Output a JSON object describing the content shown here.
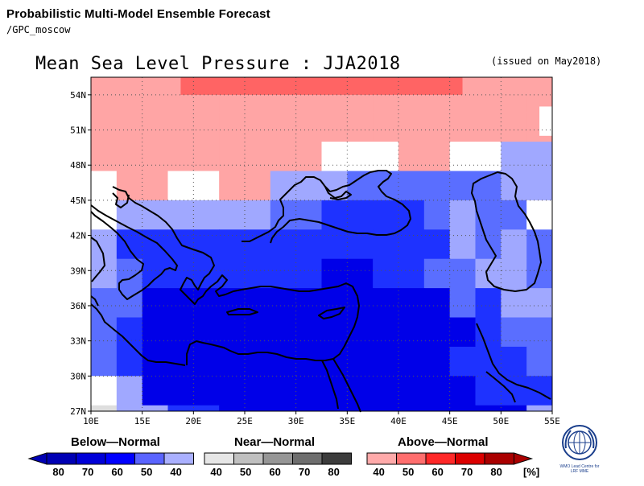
{
  "header": {
    "title": "Probabilistic Multi-Model Ensemble Forecast",
    "subtitle": "/GPC_moscow"
  },
  "map": {
    "title": "Mean Sea Level Pressure : JJA2018",
    "issued": "(issued on May2018)",
    "lon_labels": [
      "10E",
      "15E",
      "20E",
      "25E",
      "30E",
      "35E",
      "40E",
      "45E",
      "50E",
      "55E"
    ],
    "lat_labels": [
      "54N",
      "51N",
      "48N",
      "45N",
      "42N",
      "39N",
      "36N",
      "33N",
      "30N",
      "27N"
    ],
    "lon_range": [
      10,
      55
    ],
    "lat_range": [
      27,
      55.5
    ],
    "grid_cell_deg": 2.5,
    "category_colors": {
      "below_80": "#0000cd",
      "below_70": "#0000e8",
      "below_60": "#1e32ff",
      "below_50": "#5a6eff",
      "below_40": "#a0a8ff",
      "near_40": "#dedede",
      "above_40": "#ffa5a5",
      "above_50": "#ff6464",
      "none": "#ffffff"
    }
  },
  "legend": {
    "below": {
      "label": "Below—Normal",
      "ticks": [
        "80",
        "70",
        "60",
        "50",
        "40"
      ],
      "colors": [
        "#0000b4",
        "#0000d8",
        "#0000ff",
        "#5a64ff",
        "#aab0ff"
      ]
    },
    "near": {
      "label": "Near—Normal",
      "ticks": [
        "40",
        "50",
        "60",
        "70",
        "80"
      ],
      "colors": [
        "#e6e6e6",
        "#c0c0c0",
        "#969696",
        "#6e6e6e",
        "#3c3c3c"
      ]
    },
    "above": {
      "label": "Above—Normal",
      "ticks": [
        "40",
        "50",
        "60",
        "70",
        "80"
      ],
      "colors": [
        "#ffaaaa",
        "#ff6e6e",
        "#ff2828",
        "#dc0000",
        "#aa0000"
      ]
    },
    "unit": "[%]"
  },
  "logo": {
    "line1": "WMO Lead Centre for",
    "line2": "LRF MME"
  }
}
